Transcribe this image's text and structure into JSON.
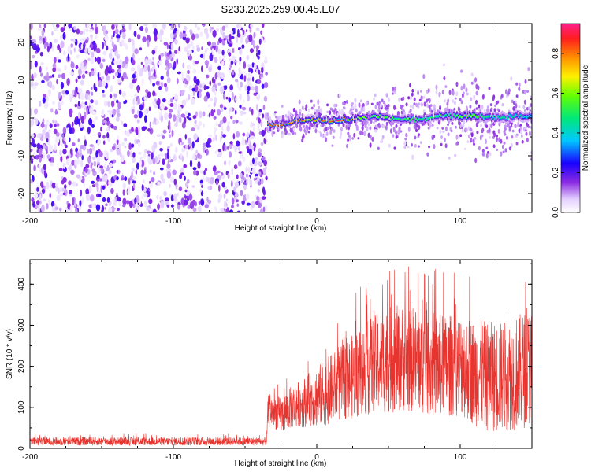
{
  "title": "S233.2025.259.00.45.E07",
  "colors": {
    "snr_line": "#e8342f",
    "axis": "#000000",
    "background": "#ffffff"
  },
  "chart_data": [
    {
      "type": "heatmap",
      "title": "",
      "xlabel": "Height of straight line (km)",
      "ylabel": "Frequency (Hz)",
      "xlim": [
        -200,
        150
      ],
      "ylim": [
        -25,
        25
      ],
      "xticks": [
        "-200",
        "-100",
        "0",
        "100"
      ],
      "yticks": [
        "20",
        "10",
        "0",
        "-10",
        "-20"
      ],
      "colorbar": {
        "label": "Normalized spectral amplitude",
        "range": [
          0.0,
          0.95
        ],
        "ticks": [
          "0.0",
          "0.2",
          "0.4",
          "0.6",
          "0.8"
        ]
      },
      "noise_region": {
        "x_from": -200,
        "x_to": -35
      },
      "signal_ridge": {
        "x": [
          -35,
          -25,
          -15,
          -5,
          5,
          15,
          25,
          35,
          45,
          55,
          65,
          75,
          85,
          95,
          105,
          115,
          125,
          135,
          150
        ],
        "freq": [
          -1.5,
          -1.8,
          -0.8,
          -0.5,
          -0.7,
          -0.5,
          -0.3,
          0.4,
          0.3,
          -0.1,
          -0.5,
          -0.2,
          0.3,
          0.4,
          0.6,
          0.2,
          0.1,
          0.4,
          0.5
        ],
        "peak_amplitude": [
          0.9,
          0.85,
          0.8,
          0.75,
          0.85,
          0.9,
          0.75,
          0.5,
          0.6,
          0.45,
          0.55,
          0.45,
          0.5,
          0.5,
          0.6,
          0.45,
          0.4,
          0.4,
          0.35
        ]
      }
    },
    {
      "type": "line",
      "title": "",
      "xlabel": "Height of straight line (km)",
      "ylabel": "SNR (10 * v/v)",
      "xlim": [
        -200,
        150
      ],
      "ylim": [
        0,
        460
      ],
      "xticks": [
        "-200",
        "-100",
        "0",
        "100"
      ],
      "yticks": [
        "0",
        "100",
        "200",
        "300",
        "400"
      ],
      "series": [
        {
          "name": "SNR",
          "x": [
            -200,
            -150,
            -100,
            -50,
            -35,
            -34,
            -30,
            -25,
            -20,
            -15,
            -10,
            -5,
            0,
            10,
            20,
            30,
            40,
            50,
            60,
            70,
            80,
            90,
            100,
            110,
            120,
            130,
            140,
            150
          ],
          "mean": [
            17,
            17,
            17,
            17,
            17,
            90,
            90,
            80,
            95,
            105,
            110,
            120,
            125,
            145,
            165,
            185,
            205,
            215,
            220,
            215,
            205,
            200,
            205,
            185,
            175,
            175,
            185,
            200
          ],
          "spread": [
            10,
            10,
            10,
            10,
            10,
            40,
            40,
            45,
            50,
            55,
            60,
            65,
            75,
            85,
            95,
            110,
            120,
            130,
            130,
            130,
            130,
            125,
            125,
            130,
            135,
            135,
            140,
            145
          ]
        }
      ]
    }
  ]
}
